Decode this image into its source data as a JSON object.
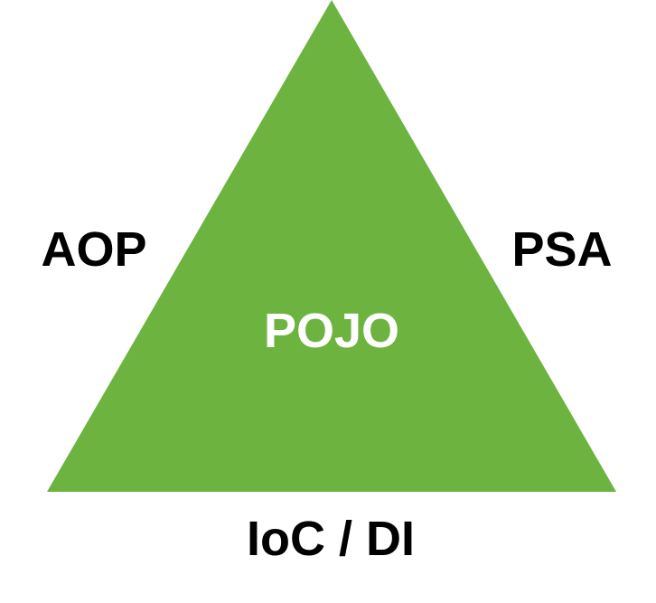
{
  "diagram": {
    "center_label": "POJO",
    "left_label": "AOP",
    "right_label": "PSA",
    "bottom_label": "IoC / DI",
    "colors": {
      "triangle": "#6db33f",
      "center_text": "#ffffff",
      "outer_text": "#000000",
      "background": "#ffffff"
    }
  }
}
